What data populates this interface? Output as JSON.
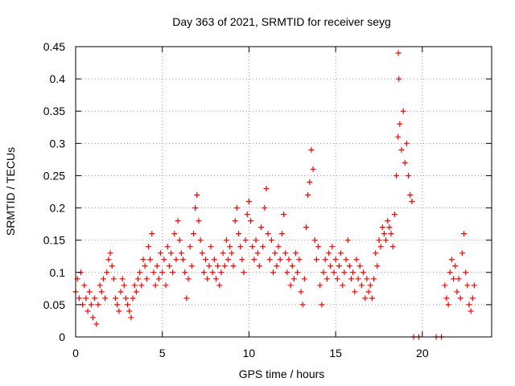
{
  "chart_data": {
    "type": "scatter",
    "title": "Day 363 of 2021, SRMTID for receiver seyg",
    "xlabel": "GPS time / hours",
    "ylabel": "SRMTID / TECUs",
    "xlim": [
      0,
      24
    ],
    "ylim": [
      0,
      0.45
    ],
    "xticks": [
      0,
      5,
      10,
      15,
      20
    ],
    "yticks": [
      0,
      0.05,
      0.1,
      0.15,
      0.2,
      0.25,
      0.3,
      0.35,
      0.4,
      0.45
    ],
    "xtick_labels": [
      "0",
      "5",
      "10",
      "15",
      "20"
    ],
    "ytick_labels": [
      "0",
      "0.05",
      "0.1",
      "0.15",
      "0.2",
      "0.25",
      "0.3",
      "0.35",
      "0.4",
      "0.45"
    ],
    "grid": true,
    "marker": "+",
    "series": [
      {
        "name": "SRMTID",
        "color": "#ff0000",
        "points": [
          [
            0.0,
            0.07
          ],
          [
            0.1,
            0.09
          ],
          [
            0.2,
            0.06
          ],
          [
            0.3,
            0.1
          ],
          [
            0.4,
            0.05
          ],
          [
            0.5,
            0.08
          ],
          [
            0.6,
            0.06
          ],
          [
            0.7,
            0.04
          ],
          [
            0.8,
            0.07
          ],
          [
            0.9,
            0.05
          ],
          [
            1.0,
            0.03
          ],
          [
            1.1,
            0.06
          ],
          [
            1.2,
            0.02
          ],
          [
            1.3,
            0.05
          ],
          [
            1.4,
            0.08
          ],
          [
            1.5,
            0.07
          ],
          [
            1.6,
            0.09
          ],
          [
            1.7,
            0.06
          ],
          [
            1.8,
            0.1
          ],
          [
            1.9,
            0.12
          ],
          [
            2.0,
            0.13
          ],
          [
            2.1,
            0.11
          ],
          [
            2.2,
            0.09
          ],
          [
            2.3,
            0.06
          ],
          [
            2.4,
            0.05
          ],
          [
            2.5,
            0.04
          ],
          [
            2.6,
            0.07
          ],
          [
            2.7,
            0.09
          ],
          [
            2.8,
            0.08
          ],
          [
            2.9,
            0.06
          ],
          [
            3.0,
            0.05
          ],
          [
            3.1,
            0.04
          ],
          [
            3.2,
            0.03
          ],
          [
            3.3,
            0.06
          ],
          [
            3.4,
            0.08
          ],
          [
            3.5,
            0.07
          ],
          [
            3.6,
            0.09
          ],
          [
            3.7,
            0.1
          ],
          [
            3.8,
            0.08
          ],
          [
            3.9,
            0.12
          ],
          [
            4.0,
            0.11
          ],
          [
            4.1,
            0.09
          ],
          [
            4.2,
            0.14
          ],
          [
            4.3,
            0.12
          ],
          [
            4.4,
            0.16
          ],
          [
            4.5,
            0.1
          ],
          [
            4.6,
            0.08
          ],
          [
            4.7,
            0.11
          ],
          [
            4.8,
            0.09
          ],
          [
            4.9,
            0.13
          ],
          [
            5.0,
            0.1
          ],
          [
            5.1,
            0.12
          ],
          [
            5.2,
            0.08
          ],
          [
            5.3,
            0.14
          ],
          [
            5.4,
            0.11
          ],
          [
            5.5,
            0.13
          ],
          [
            5.6,
            0.1
          ],
          [
            5.7,
            0.16
          ],
          [
            5.8,
            0.12
          ],
          [
            5.9,
            0.18
          ],
          [
            6.0,
            0.15
          ],
          [
            6.1,
            0.13
          ],
          [
            6.2,
            0.12
          ],
          [
            6.3,
            0.1
          ],
          [
            6.4,
            0.06
          ],
          [
            6.5,
            0.09
          ],
          [
            6.6,
            0.14
          ],
          [
            6.7,
            0.11
          ],
          [
            6.8,
            0.16
          ],
          [
            6.9,
            0.2
          ],
          [
            7.0,
            0.22
          ],
          [
            7.1,
            0.18
          ],
          [
            7.2,
            0.15
          ],
          [
            7.3,
            0.13
          ],
          [
            7.4,
            0.1
          ],
          [
            7.5,
            0.12
          ],
          [
            7.6,
            0.09
          ],
          [
            7.7,
            0.11
          ],
          [
            7.8,
            0.14
          ],
          [
            7.9,
            0.1
          ],
          [
            8.0,
            0.12
          ],
          [
            8.1,
            0.09
          ],
          [
            8.2,
            0.11
          ],
          [
            8.3,
            0.08
          ],
          [
            8.4,
            0.1
          ],
          [
            8.5,
            0.13
          ],
          [
            8.6,
            0.11
          ],
          [
            8.7,
            0.15
          ],
          [
            8.8,
            0.12
          ],
          [
            8.9,
            0.14
          ],
          [
            9.0,
            0.13
          ],
          [
            9.1,
            0.11
          ],
          [
            9.2,
            0.18
          ],
          [
            9.3,
            0.2
          ],
          [
            9.4,
            0.16
          ],
          [
            9.5,
            0.14
          ],
          [
            9.6,
            0.12
          ],
          [
            9.7,
            0.1
          ],
          [
            9.8,
            0.15
          ],
          [
            9.9,
            0.19
          ],
          [
            10.0,
            0.21
          ],
          [
            10.1,
            0.18
          ],
          [
            10.2,
            0.14
          ],
          [
            10.3,
            0.12
          ],
          [
            10.4,
            0.15
          ],
          [
            10.5,
            0.13
          ],
          [
            10.6,
            0.11
          ],
          [
            10.7,
            0.17
          ],
          [
            10.8,
            0.14
          ],
          [
            10.9,
            0.2
          ],
          [
            11.0,
            0.23
          ],
          [
            11.1,
            0.16
          ],
          [
            11.2,
            0.12
          ],
          [
            11.3,
            0.15
          ],
          [
            11.4,
            0.1
          ],
          [
            11.5,
            0.13
          ],
          [
            11.6,
            0.11
          ],
          [
            11.7,
            0.14
          ],
          [
            11.8,
            0.12
          ],
          [
            11.9,
            0.16
          ],
          [
            12.0,
            0.19
          ],
          [
            12.1,
            0.13
          ],
          [
            12.2,
            0.1
          ],
          [
            12.3,
            0.12
          ],
          [
            12.4,
            0.08
          ],
          [
            12.5,
            0.11
          ],
          [
            12.6,
            0.09
          ],
          [
            12.7,
            0.13
          ],
          [
            12.8,
            0.1
          ],
          [
            12.9,
            0.12
          ],
          [
            13.0,
            0.07
          ],
          [
            13.1,
            0.05
          ],
          [
            13.2,
            0.09
          ],
          [
            13.3,
            0.17
          ],
          [
            13.4,
            0.22
          ],
          [
            13.5,
            0.24
          ],
          [
            13.6,
            0.29
          ],
          [
            13.7,
            0.26
          ],
          [
            13.8,
            0.15
          ],
          [
            13.9,
            0.12
          ],
          [
            14.0,
            0.14
          ],
          [
            14.1,
            0.08
          ],
          [
            14.2,
            0.05
          ],
          [
            14.3,
            0.1
          ],
          [
            14.4,
            0.12
          ],
          [
            14.5,
            0.09
          ],
          [
            14.6,
            0.13
          ],
          [
            14.7,
            0.11
          ],
          [
            14.8,
            0.14
          ],
          [
            14.9,
            0.1
          ],
          [
            15.0,
            0.12
          ],
          [
            15.1,
            0.09
          ],
          [
            15.2,
            0.11
          ],
          [
            15.3,
            0.13
          ],
          [
            15.4,
            0.08
          ],
          [
            15.5,
            0.1
          ],
          [
            15.6,
            0.12
          ],
          [
            15.7,
            0.15
          ],
          [
            15.8,
            0.11
          ],
          [
            15.9,
            0.09
          ],
          [
            16.0,
            0.1
          ],
          [
            16.1,
            0.07
          ],
          [
            16.2,
            0.12
          ],
          [
            16.3,
            0.09
          ],
          [
            16.4,
            0.11
          ],
          [
            16.5,
            0.08
          ],
          [
            16.6,
            0.1
          ],
          [
            16.7,
            0.06
          ],
          [
            16.8,
            0.09
          ],
          [
            16.9,
            0.07
          ],
          [
            17.0,
            0.08
          ],
          [
            17.1,
            0.06
          ],
          [
            17.2,
            0.09
          ],
          [
            17.3,
            0.13
          ],
          [
            17.4,
            0.11
          ],
          [
            17.5,
            0.15
          ],
          [
            17.6,
            0.14
          ],
          [
            17.7,
            0.17
          ],
          [
            17.8,
            0.16
          ],
          [
            17.9,
            0.15
          ],
          [
            18.0,
            0.18
          ],
          [
            18.1,
            0.17
          ],
          [
            18.2,
            0.16
          ],
          [
            18.3,
            0.14
          ],
          [
            18.4,
            0.19
          ],
          [
            18.5,
            0.25
          ],
          [
            18.6,
            0.31
          ],
          [
            18.62,
            0.44
          ],
          [
            18.65,
            0.4
          ],
          [
            18.7,
            0.33
          ],
          [
            18.8,
            0.29
          ],
          [
            18.9,
            0.35
          ],
          [
            19.0,
            0.27
          ],
          [
            19.1,
            0.3
          ],
          [
            19.2,
            0.25
          ],
          [
            19.3,
            0.22
          ],
          [
            19.4,
            0.21
          ],
          [
            19.5,
            0.0
          ],
          [
            19.8,
            0.0
          ],
          [
            20.8,
            0.0
          ],
          [
            21.1,
            0.0
          ],
          [
            21.3,
            0.08
          ],
          [
            21.4,
            0.06
          ],
          [
            21.5,
            0.05
          ],
          [
            21.6,
            0.1
          ],
          [
            21.7,
            0.12
          ],
          [
            21.8,
            0.09
          ],
          [
            21.9,
            0.11
          ],
          [
            22.0,
            0.07
          ],
          [
            22.1,
            0.09
          ],
          [
            22.2,
            0.06
          ],
          [
            22.3,
            0.13
          ],
          [
            22.4,
            0.16
          ],
          [
            22.5,
            0.1
          ],
          [
            22.6,
            0.08
          ],
          [
            22.7,
            0.05
          ],
          [
            22.8,
            0.04
          ],
          [
            22.9,
            0.06
          ],
          [
            23.0,
            0.08
          ]
        ]
      }
    ]
  }
}
